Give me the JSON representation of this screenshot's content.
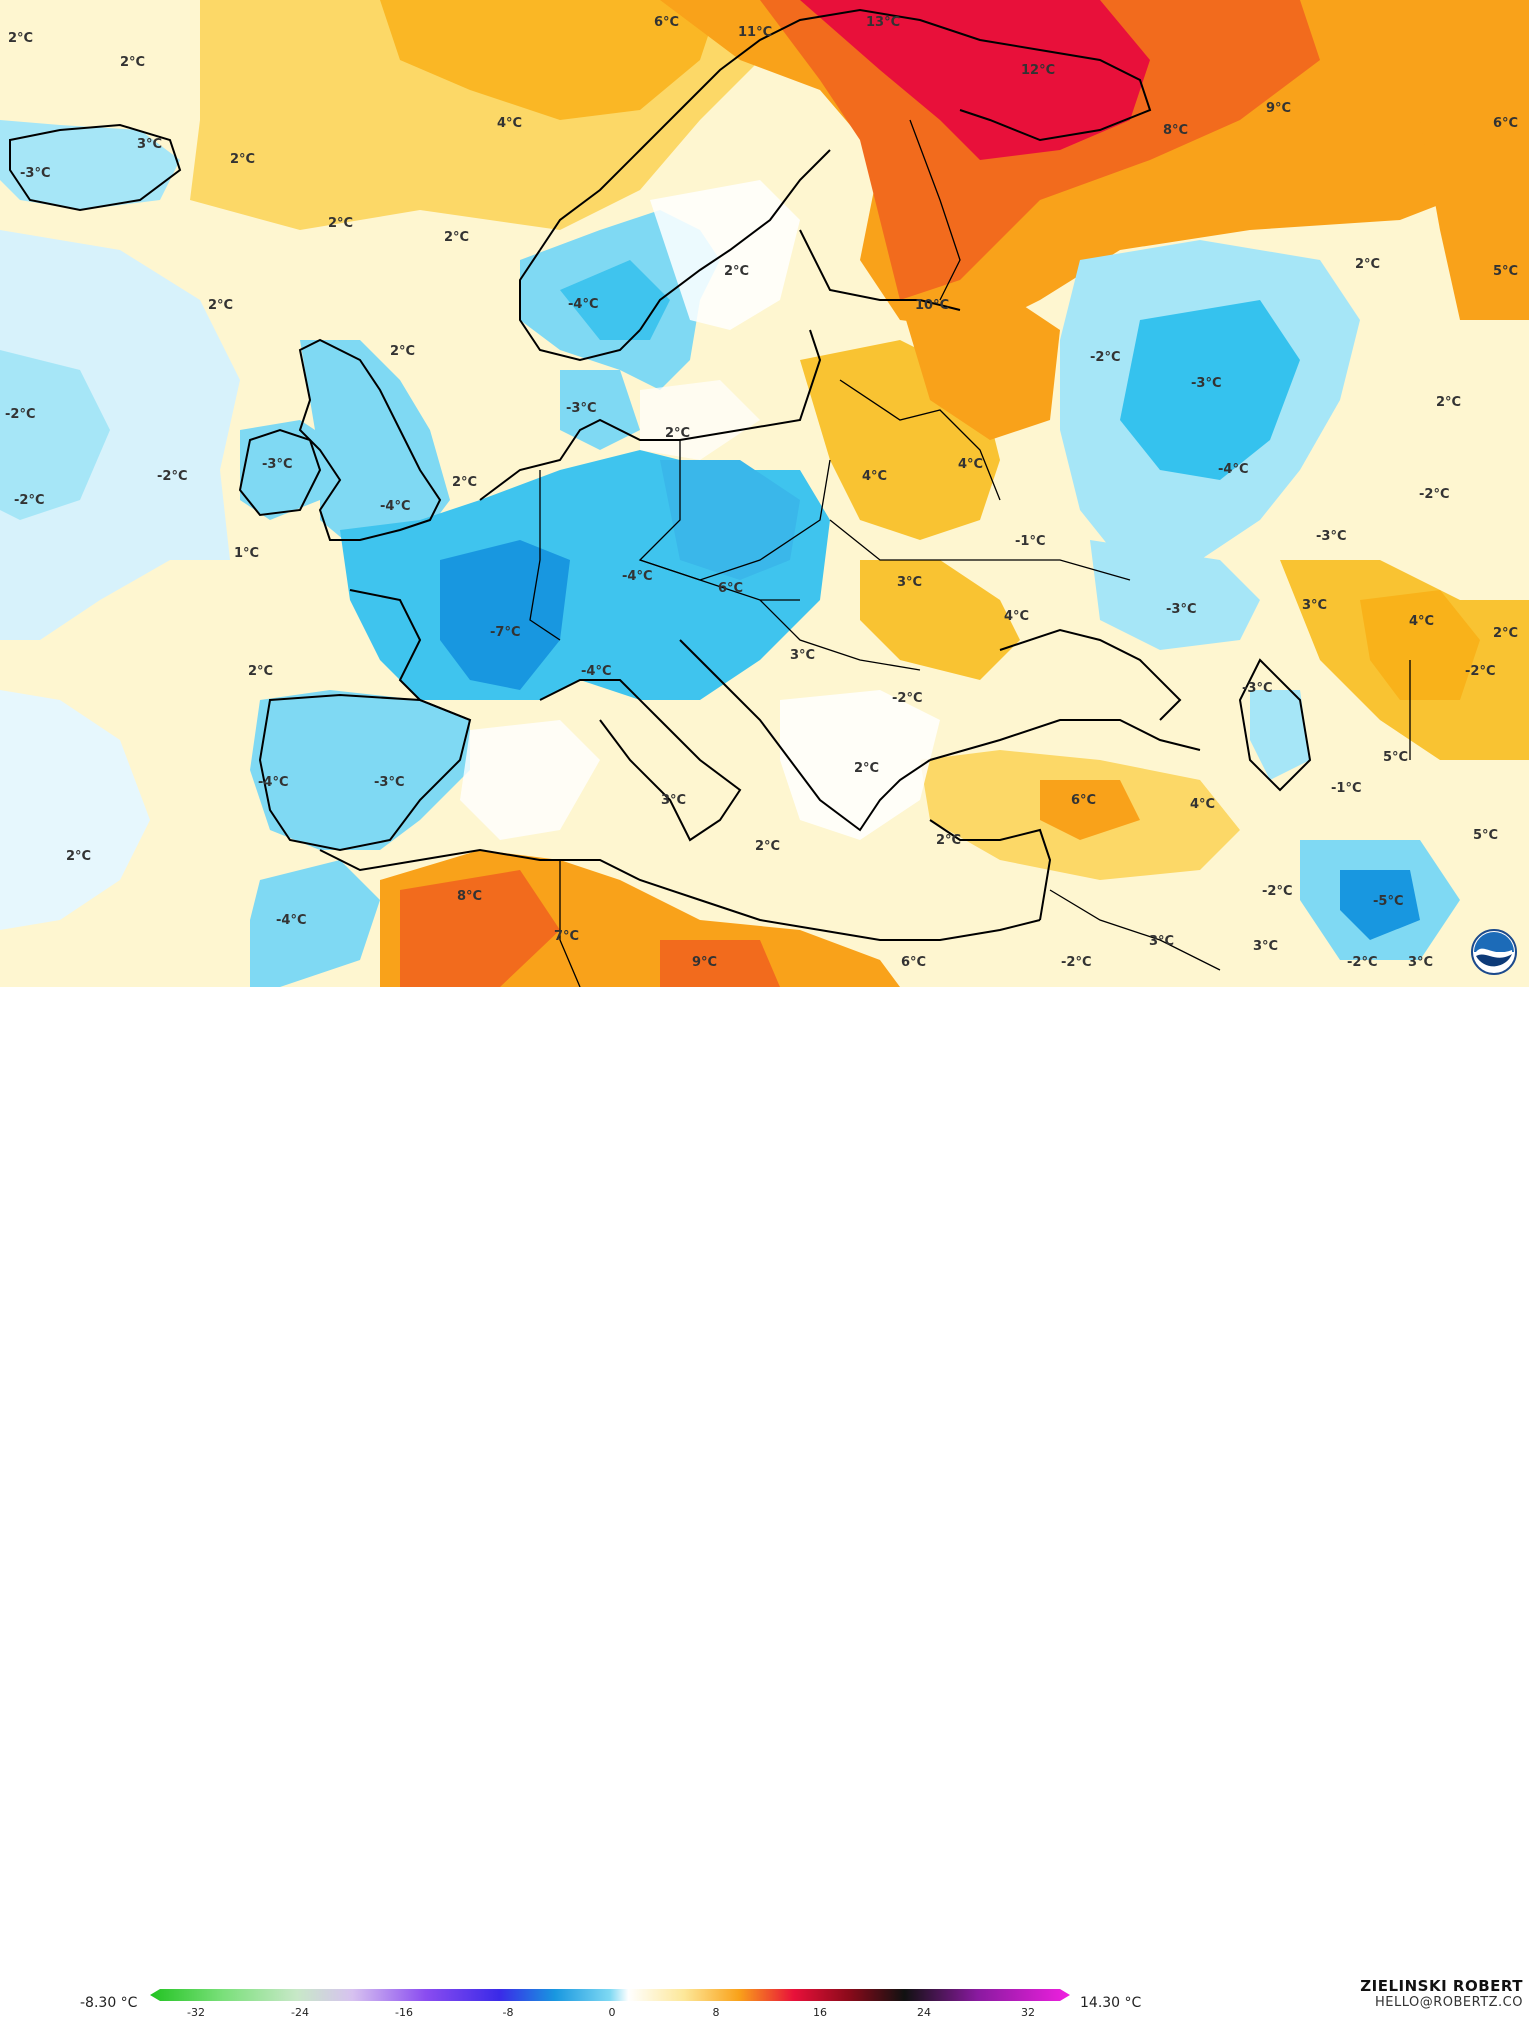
{
  "map": {
    "labels": [
      {
        "text": "2°C"
      },
      {
        "text": "2°C"
      },
      {
        "text": "6°C"
      },
      {
        "text": "11°C"
      },
      {
        "text": "13°C"
      },
      {
        "text": "12°C"
      },
      {
        "text": "9°C"
      },
      {
        "text": "8°C"
      },
      {
        "text": "6°C"
      },
      {
        "text": "4°C"
      },
      {
        "text": "3°C"
      },
      {
        "text": "-3°C"
      },
      {
        "text": "2°C"
      },
      {
        "text": "2°C"
      },
      {
        "text": "2°C"
      },
      {
        "text": "2°C"
      },
      {
        "text": "-4°C"
      },
      {
        "text": "2°C"
      },
      {
        "text": "10°C"
      },
      {
        "text": "2°C"
      },
      {
        "text": "5°C"
      },
      {
        "text": "2°C"
      },
      {
        "text": "-2°C"
      },
      {
        "text": "-3°C"
      },
      {
        "text": "-2°C"
      },
      {
        "text": "-3°C"
      },
      {
        "text": "2°C"
      },
      {
        "text": "2°C"
      },
      {
        "text": "-3°C"
      },
      {
        "text": "-2°C"
      },
      {
        "text": "-4°C"
      },
      {
        "text": "2°C"
      },
      {
        "text": "4°C"
      },
      {
        "text": "4°C"
      },
      {
        "text": "-4°C"
      },
      {
        "text": "-2°C"
      },
      {
        "text": "-2°C"
      },
      {
        "text": "1°C"
      },
      {
        "text": "-1°C"
      },
      {
        "text": "-3°C"
      },
      {
        "text": "-4°C"
      },
      {
        "text": "6°C"
      },
      {
        "text": "3°C"
      },
      {
        "text": "4°C"
      },
      {
        "text": "-3°C"
      },
      {
        "text": "3°C"
      },
      {
        "text": "4°C"
      },
      {
        "text": "2°C"
      },
      {
        "text": "-7°C"
      },
      {
        "text": "-4°C"
      },
      {
        "text": "3°C"
      },
      {
        "text": "2°C"
      },
      {
        "text": "-2°C"
      },
      {
        "text": "-2°C"
      },
      {
        "text": "-3°C"
      },
      {
        "text": "-4°C"
      },
      {
        "text": "-3°C"
      },
      {
        "text": "2°C"
      },
      {
        "text": "5°C"
      },
      {
        "text": "3°C"
      },
      {
        "text": "6°C"
      },
      {
        "text": "4°C"
      },
      {
        "text": "-1°C"
      },
      {
        "text": "2°C"
      },
      {
        "text": "2°C"
      },
      {
        "text": "2°C"
      },
      {
        "text": "5°C"
      },
      {
        "text": "8°C"
      },
      {
        "text": "-4°C"
      },
      {
        "text": "7°C"
      },
      {
        "text": "9°C"
      },
      {
        "text": "6°C"
      },
      {
        "text": "-2°C"
      },
      {
        "text": "3°C"
      },
      {
        "text": "3°C"
      },
      {
        "text": "-2°C"
      },
      {
        "text": "-5°C"
      },
      {
        "text": "-2°C"
      },
      {
        "text": "3°C"
      }
    ]
  },
  "legend": {
    "min_label": "-8.30 °C",
    "max_label": "14.30 °C",
    "ticks": [
      "-32",
      "-24",
      "-16",
      "-8",
      "0",
      "8",
      "16",
      "24",
      "32"
    ]
  },
  "branding": {
    "name": "ZIELINSKI ROBERT",
    "email": "HELLO@ROBERTZ.CO"
  },
  "colors": {
    "very_warm": "#e8103a",
    "warm": "#f26b1d",
    "mild_warm": "#f9b21a",
    "light_warm": "#fde89a",
    "neutral": "#ffffff",
    "cool": "#a6e6f7",
    "cold": "#35c2ee",
    "very_cold": "#1897e0",
    "coastline": "#000000"
  },
  "icons": {
    "logo": "noaa-logo-icon"
  }
}
